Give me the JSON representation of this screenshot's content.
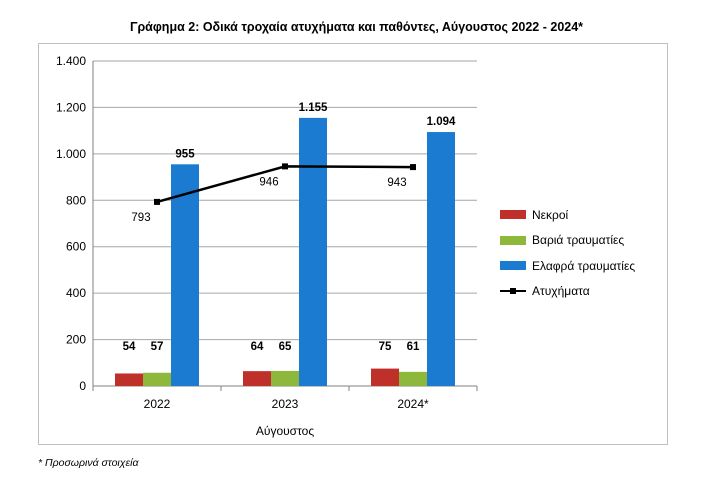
{
  "title": "Γράφημα 2: Οδικά τροχαία ατυχήματα και παθόντες, Αύγουστος 2022 - 2024*",
  "footnote": "* Προσωρινά στοιχεία",
  "chart_data": {
    "type": "bar",
    "title": "Γράφημα 2: Οδικά τροχαία ατυχήματα και παθόντες, Αύγουστος 2022 - 2024*",
    "xlabel": "Αύγουστος",
    "ylabel": "",
    "categories": [
      "2022",
      "2023",
      "2024*"
    ],
    "ylim": [
      0,
      1400
    ],
    "yticks": [
      0,
      200,
      400,
      600,
      800,
      1000,
      1200,
      1400
    ],
    "ytick_labels": [
      "0",
      "200",
      "400",
      "600",
      "800",
      "1.000",
      "1.200",
      "1.400"
    ],
    "grid": true,
    "legend_position": "right",
    "series": [
      {
        "name": "Νεκροί",
        "type": "bar",
        "color": "#c0302b",
        "values": [
          54,
          64,
          75
        ],
        "labels": [
          "54",
          "64",
          "75"
        ]
      },
      {
        "name": "Βαριά τραυματίες",
        "type": "bar",
        "color": "#8db83c",
        "values": [
          57,
          65,
          61
        ],
        "labels": [
          "57",
          "65",
          "61"
        ]
      },
      {
        "name": "Ελαφρά τραυματίες",
        "type": "bar",
        "color": "#1b7bd0",
        "values": [
          955,
          1155,
          1094
        ],
        "labels": [
          "955",
          "1.155",
          "1.094"
        ]
      },
      {
        "name": "Ατυχήματα",
        "type": "line",
        "color": "#000000",
        "values": [
          793,
          946,
          943
        ],
        "labels": [
          "793",
          "946",
          "943"
        ]
      }
    ]
  }
}
